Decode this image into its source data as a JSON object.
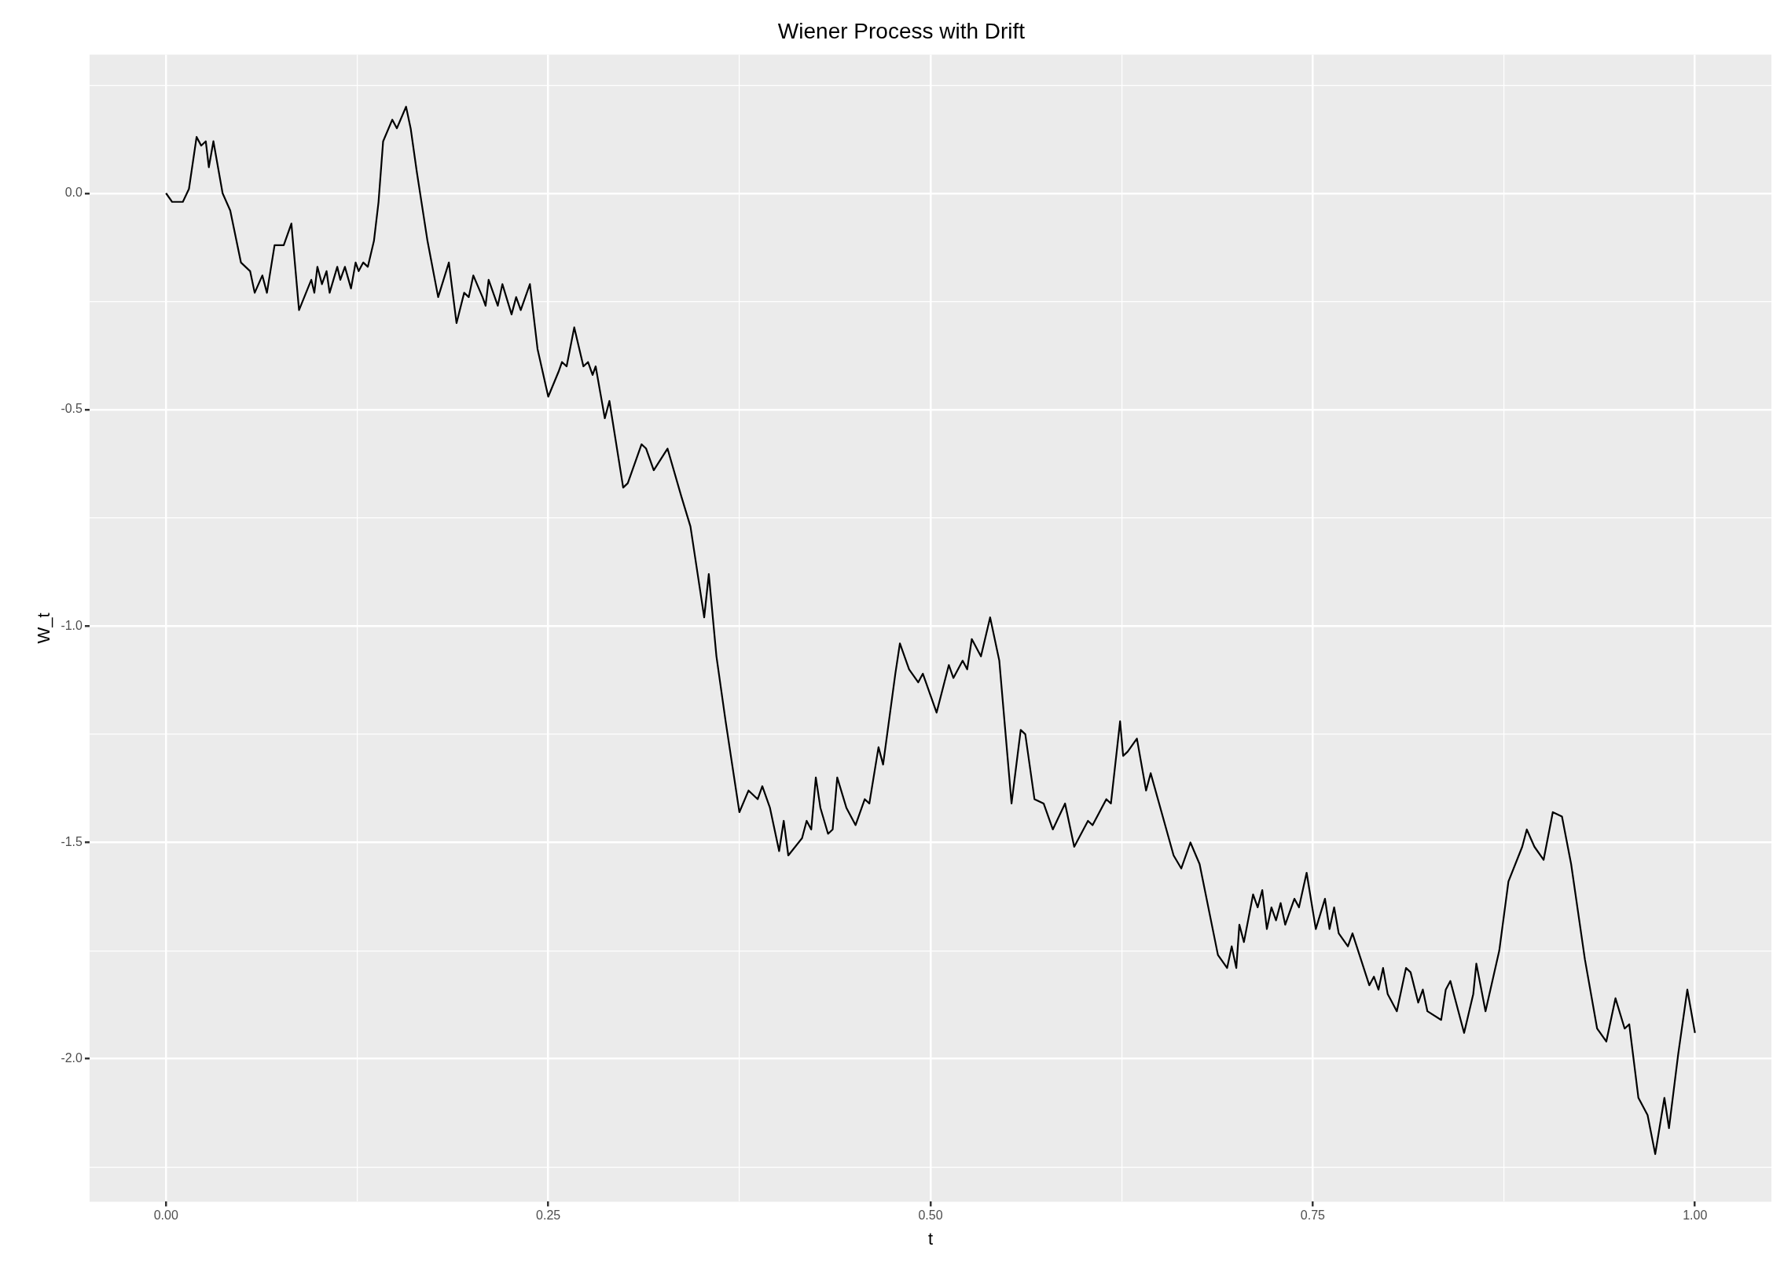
{
  "chart_data": {
    "type": "line",
    "title": "Wiener Process with Drift",
    "xlabel": "t",
    "ylabel": "W_t",
    "xlim": [
      -0.05,
      1.05
    ],
    "ylim": [
      -2.33,
      0.32
    ],
    "xticks": [
      {
        "value": 0,
        "label": "0.00"
      },
      {
        "value": 0.125,
        "label": null
      },
      {
        "value": 0.25,
        "label": "0.25"
      },
      {
        "value": 0.375,
        "label": null
      },
      {
        "value": 0.5,
        "label": "0.50"
      },
      {
        "value": 0.625,
        "label": null
      },
      {
        "value": 0.75,
        "label": "0.75"
      },
      {
        "value": 0.875,
        "label": null
      },
      {
        "value": 1,
        "label": "1.00"
      }
    ],
    "yticks": [
      {
        "value": -2.25,
        "label": null
      },
      {
        "value": -2,
        "label": "-2.0"
      },
      {
        "value": -1.75,
        "label": null
      },
      -1.5,
      {
        "value": -1.25,
        "label": null
      },
      {
        "value": -1,
        "label": "-1.0"
      },
      {
        "value": -0.75,
        "label": null
      },
      -0.5,
      {
        "value": -0.25,
        "label": null
      },
      {
        "value": 0,
        "label": "0.0"
      },
      {
        "value": 0.25,
        "label": null
      }
    ],
    "grid": true,
    "legend": false,
    "marker": "none",
    "line_style": "solid",
    "series": [
      {
        "color": "#000000",
        "x": [
          0,
          0.004,
          0.011,
          0.015,
          0.02,
          0.023,
          0.026,
          0.028,
          0.031,
          0.037,
          0.042,
          0.049,
          0.055,
          0.058,
          0.063,
          0.066,
          0.071,
          0.077,
          0.082,
          0.087,
          0.095,
          0.097,
          0.099,
          0.102,
          0.105,
          0.107,
          0.112,
          0.114,
          0.117,
          0.121,
          0.124,
          0.126,
          0.129,
          0.132,
          0.136,
          0.139,
          0.142,
          0.148,
          0.151,
          0.157,
          0.16,
          0.164,
          0.171,
          0.178,
          0.185,
          0.19,
          0.195,
          0.198,
          0.201,
          0.207,
          0.209,
          0.211,
          0.217,
          0.22,
          0.226,
          0.229,
          0.232,
          0.238,
          0.243,
          0.25,
          0.257,
          0.259,
          0.262,
          0.267,
          0.273,
          0.276,
          0.279,
          0.281,
          0.287,
          0.29,
          0.299,
          0.302,
          0.311,
          0.314,
          0.319,
          0.328,
          0.337,
          0.343,
          0.352,
          0.355,
          0.36,
          0.366,
          0.375,
          0.381,
          0.387,
          0.39,
          0.395,
          0.401,
          0.404,
          0.407,
          0.416,
          0.419,
          0.422,
          0.425,
          0.428,
          0.433,
          0.436,
          0.439,
          0.445,
          0.451,
          0.457,
          0.46,
          0.466,
          0.469,
          0.477,
          0.48,
          0.486,
          0.492,
          0.495,
          0.504,
          0.512,
          0.515,
          0.521,
          0.524,
          0.527,
          0.533,
          0.539,
          0.545,
          0.553,
          0.559,
          0.562,
          0.568,
          0.574,
          0.58,
          0.588,
          0.594,
          0.603,
          0.606,
          0.615,
          0.618,
          0.624,
          0.626,
          0.629,
          0.635,
          0.641,
          0.644,
          0.659,
          0.664,
          0.67,
          0.676,
          0.688,
          0.694,
          0.697,
          0.7,
          0.702,
          0.705,
          0.711,
          0.714,
          0.717,
          0.72,
          0.723,
          0.726,
          0.729,
          0.732,
          0.738,
          0.741,
          0.746,
          0.752,
          0.758,
          0.761,
          0.764,
          0.767,
          0.773,
          0.776,
          0.787,
          0.79,
          0.793,
          0.796,
          0.799,
          0.805,
          0.811,
          0.814,
          0.819,
          0.822,
          0.825,
          0.834,
          0.837,
          0.84,
          0.849,
          0.855,
          0.857,
          0.863,
          0.872,
          0.878,
          0.887,
          0.89,
          0.895,
          0.901,
          0.907,
          0.913,
          0.919,
          0.928,
          0.936,
          0.942,
          0.948,
          0.954,
          0.957,
          0.963,
          0.969,
          0.974,
          0.98,
          0.983,
          0.989,
          0.995,
          1.0
        ],
        "values": [
          0,
          -0.02,
          -0.02,
          0.01,
          0.13,
          0.11,
          0.12,
          0.06,
          0.12,
          0,
          -0.04,
          -0.16,
          -0.18,
          -0.23,
          -0.19,
          -0.23,
          -0.12,
          -0.12,
          -0.07,
          -0.27,
          -0.2,
          -0.23,
          -0.17,
          -0.21,
          -0.18,
          -0.23,
          -0.17,
          -0.2,
          -0.17,
          -0.22,
          -0.16,
          -0.18,
          -0.16,
          -0.17,
          -0.11,
          -0.02,
          0.12,
          0.17,
          0.15,
          0.2,
          0.15,
          0.05,
          -0.11,
          -0.24,
          -0.16,
          -0.3,
          -0.23,
          -0.24,
          -0.19,
          -0.24,
          -0.26,
          -0.2,
          -0.26,
          -0.21,
          -0.28,
          -0.24,
          -0.27,
          -0.21,
          -0.36,
          -0.47,
          -0.41,
          -0.39,
          -0.4,
          -0.31,
          -0.4,
          -0.39,
          -0.42,
          -0.4,
          -0.52,
          -0.48,
          -0.68,
          -0.67,
          -0.58,
          -0.59,
          -0.64,
          -0.59,
          -0.7,
          -0.77,
          -0.98,
          -0.88,
          -1.07,
          -1.22,
          -1.43,
          -1.38,
          -1.4,
          -1.37,
          -1.42,
          -1.52,
          -1.45,
          -1.53,
          -1.49,
          -1.45,
          -1.47,
          -1.35,
          -1.42,
          -1.48,
          -1.47,
          -1.35,
          -1.42,
          -1.46,
          -1.4,
          -1.41,
          -1.28,
          -1.32,
          -1.11,
          -1.04,
          -1.1,
          -1.13,
          -1.11,
          -1.2,
          -1.09,
          -1.12,
          -1.08,
          -1.1,
          -1.03,
          -1.07,
          -0.98,
          -1.08,
          -1.41,
          -1.24,
          -1.25,
          -1.4,
          -1.41,
          -1.47,
          -1.41,
          -1.51,
          -1.45,
          -1.46,
          -1.4,
          -1.41,
          -1.22,
          -1.3,
          -1.29,
          -1.26,
          -1.38,
          -1.34,
          -1.53,
          -1.56,
          -1.5,
          -1.55,
          -1.76,
          -1.79,
          -1.74,
          -1.79,
          -1.69,
          -1.73,
          -1.62,
          -1.65,
          -1.61,
          -1.7,
          -1.65,
          -1.68,
          -1.64,
          -1.69,
          -1.63,
          -1.65,
          -1.57,
          -1.7,
          -1.63,
          -1.7,
          -1.65,
          -1.71,
          -1.74,
          -1.71,
          -1.83,
          -1.81,
          -1.84,
          -1.79,
          -1.85,
          -1.89,
          -1.79,
          -1.8,
          -1.87,
          -1.84,
          -1.89,
          -1.91,
          -1.84,
          -1.82,
          -1.94,
          -1.85,
          -1.78,
          -1.89,
          -1.75,
          -1.59,
          -1.51,
          -1.47,
          -1.51,
          -1.54,
          -1.43,
          -1.44,
          -1.55,
          -1.77,
          -1.93,
          -1.96,
          -1.86,
          -1.93,
          -1.92,
          -2.09,
          -2.13,
          -2.22,
          -2.09,
          -2.16,
          -1.99,
          -1.84,
          -1.94
        ]
      }
    ]
  }
}
